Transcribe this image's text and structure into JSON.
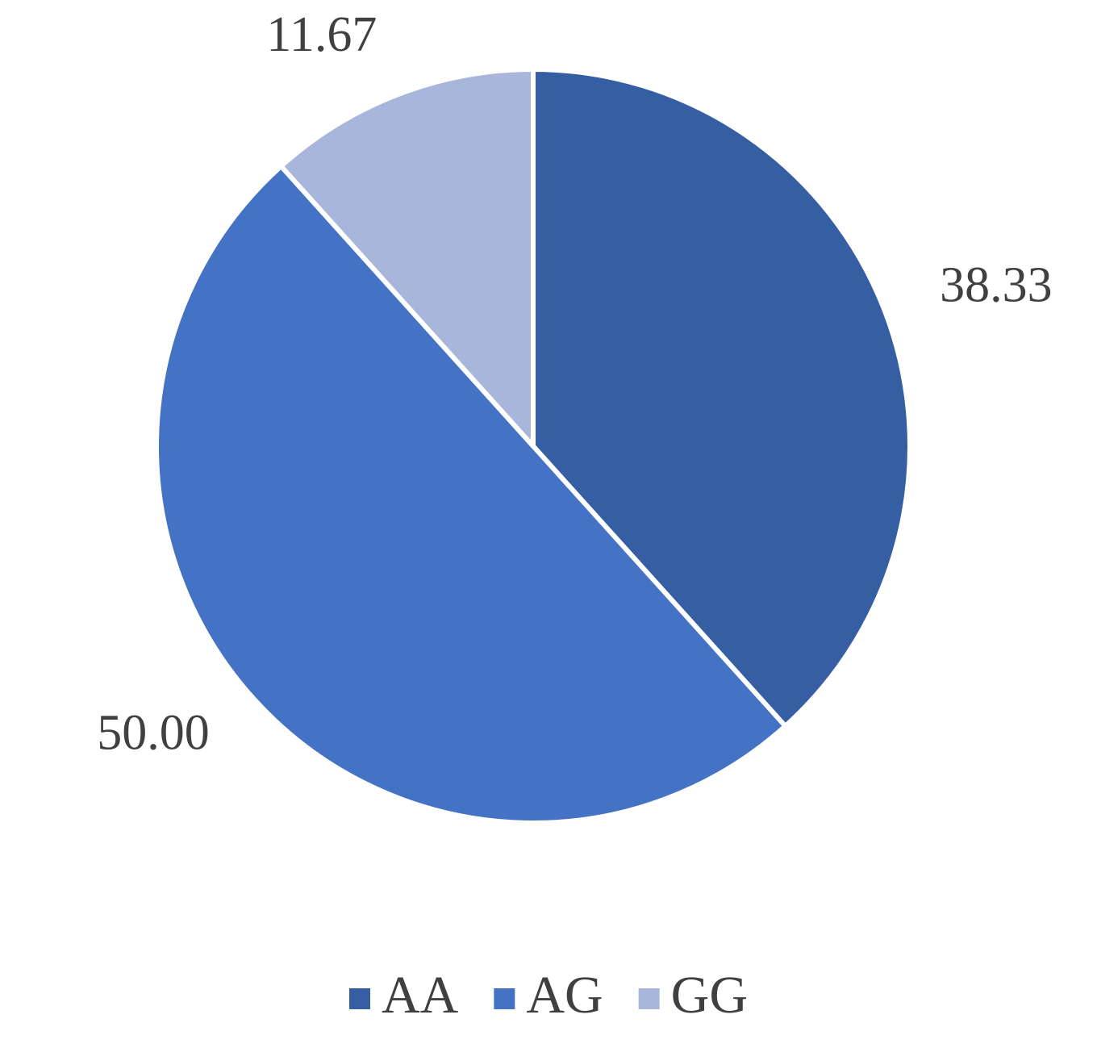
{
  "chart_data": {
    "type": "pie",
    "categories": [
      "AA",
      "AG",
      "GG"
    ],
    "values": [
      38.33,
      50,
      11.67
    ],
    "value_labels": [
      "38.33",
      "50.00",
      "11.67"
    ],
    "colors": [
      "#365fa3",
      "#4472c4",
      "#a9b6db"
    ],
    "legend": "bottom"
  }
}
